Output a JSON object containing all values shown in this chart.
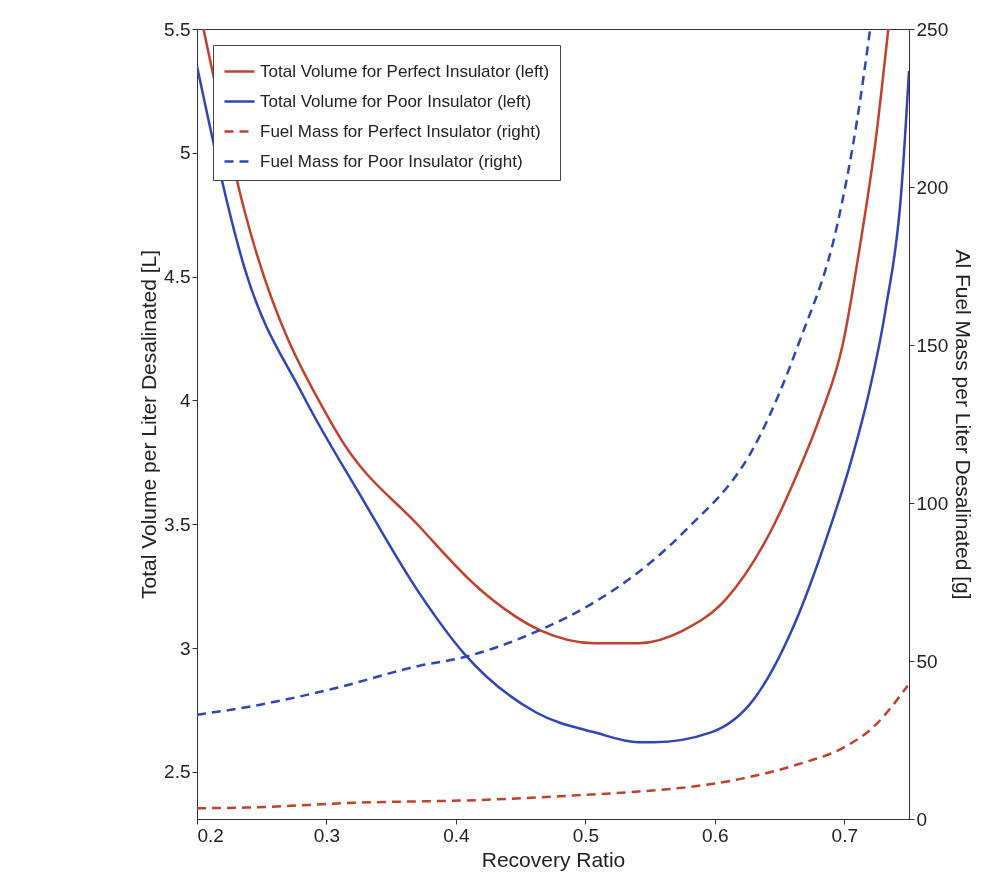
{
  "chart_data": {
    "type": "line",
    "xlabel": "Recovery Ratio",
    "ylabel": "Total Volume per Liter Desalinated [L]",
    "y2label": "Al Fuel Mass per Liter Desalinated [g]",
    "xlim": [
      0.2,
      0.75
    ],
    "xticks": [
      0.2,
      0.3,
      0.4,
      0.5,
      0.6,
      0.7
    ],
    "ylim": [
      2.31,
      5.5
    ],
    "yticks": [
      2.5,
      3,
      3.5,
      4,
      4.5,
      5,
      5.5
    ],
    "y2lim": [
      0,
      250
    ],
    "y2ticks": [
      0,
      50,
      100,
      150,
      200,
      250
    ],
    "grid": false,
    "legend": "top left",
    "series": [
      {
        "name": "Total Volume for Perfect Insulator (left)",
        "color": "#c3402c",
        "axis": "y",
        "line_style": "solid",
        "x": [
          0.205,
          0.237,
          0.307,
          0.372,
          0.418,
          0.466,
          0.507,
          0.523,
          0.541,
          0.575,
          0.609,
          0.643,
          0.665,
          0.681,
          0.699,
          0.712,
          0.724,
          0.734
        ],
        "values": [
          5.5,
          4.76,
          3.88,
          3.49,
          3.24,
          3.07,
          3.02,
          3.02,
          3.02,
          3.07,
          3.2,
          3.47,
          3.72,
          3.93,
          4.23,
          4.62,
          5.04,
          5.5
        ]
      },
      {
        "name": "Total Volume for Poor Insulator (left)",
        "color": "#2f45b8",
        "axis": "y",
        "line_style": "solid",
        "x": [
          0.2,
          0.237,
          0.282,
          0.327,
          0.372,
          0.406,
          0.462,
          0.507,
          0.541,
          0.553,
          0.597,
          0.631,
          0.665,
          0.688,
          0.705,
          0.719,
          0.732,
          0.744,
          0.75
        ],
        "values": [
          5.35,
          4.53,
          4.02,
          3.61,
          3.22,
          2.98,
          2.74,
          2.66,
          2.62,
          2.62,
          2.66,
          2.8,
          3.14,
          3.47,
          3.75,
          4.03,
          4.37,
          4.84,
          5.33
        ]
      },
      {
        "name": "Fuel Mass for Perfect Insulator (right)",
        "color": "#c3402c",
        "axis": "y2",
        "line_style": "dashed",
        "x": [
          0.2,
          0.237,
          0.327,
          0.418,
          0.485,
          0.541,
          0.575,
          0.62,
          0.665,
          0.699,
          0.722,
          0.749
        ],
        "values": [
          3.4,
          3.6,
          5.2,
          6,
          7.3,
          8.7,
          9.9,
          12.7,
          17.4,
          22.5,
          28.9,
          42.2
        ]
      },
      {
        "name": "Fuel Mass for Poor Insulator (right)",
        "color": "#2f45b8",
        "axis": "y2",
        "line_style": "dashed",
        "x": [
          0.2,
          0.237,
          0.305,
          0.372,
          0.406,
          0.466,
          0.507,
          0.541,
          0.575,
          0.634,
          0.665,
          0.695,
          0.71,
          0.72
        ],
        "values": [
          33,
          35.3,
          41.2,
          48.5,
          51.2,
          60,
          68.6,
          78.1,
          90.4,
          120.6,
          150.7,
          188.8,
          221.4,
          250
        ]
      }
    ]
  }
}
